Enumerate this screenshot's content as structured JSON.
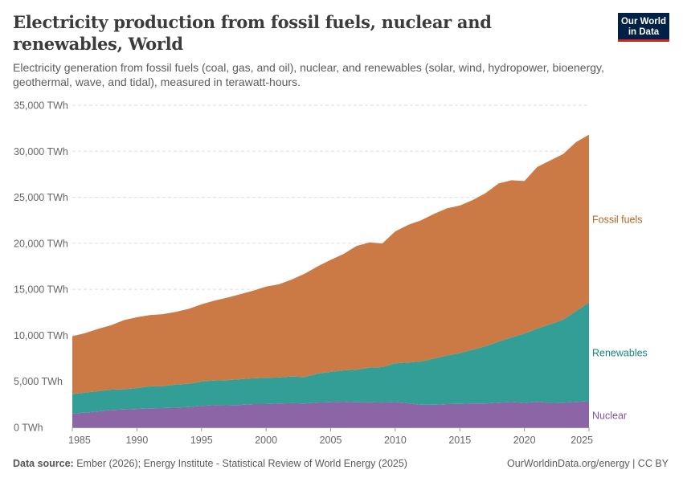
{
  "header": {
    "title": "Electricity production from fossil fuels, nuclear and renewables, World",
    "subtitle": "Electricity generation from fossil fuels (coal, gas, and oil), nuclear, and renewables (solar, wind, hydropower, bioenergy, geothermal, wave, and tidal), measured in terawatt-hours.",
    "logo_text": "Our World in Data"
  },
  "footer": {
    "source_label": "Data source:",
    "source_text": "Ember (2026); Energy Institute - Statistical Review of World Energy (2025)",
    "license": "OurWorldinData.org/energy | CC BY"
  },
  "chart_data": {
    "type": "area",
    "stacked": true,
    "title": "Electricity production from fossil fuels, nuclear and renewables, World",
    "ylabel": "",
    "xlabel": "",
    "unit": "TWh",
    "ylim": [
      0,
      35000
    ],
    "xlim": [
      1985,
      2025
    ],
    "grid": "horizontal dashed",
    "legend": "right (inline labels)",
    "x_ticks": [
      "1985",
      "1990",
      "1995",
      "2000",
      "2005",
      "2010",
      "2015",
      "2020",
      "2025"
    ],
    "y_ticks": [
      "0 TWh",
      "5,000 TWh",
      "10,000 TWh",
      "15,000 TWh",
      "20,000 TWh",
      "25,000 TWh",
      "30,000 TWh",
      "35,000 TWh"
    ],
    "x": [
      1985,
      1986,
      1987,
      1988,
      1989,
      1990,
      1991,
      1992,
      1993,
      1994,
      1995,
      1996,
      1997,
      1998,
      1999,
      2000,
      2001,
      2002,
      2003,
      2004,
      2005,
      2006,
      2007,
      2008,
      2009,
      2010,
      2011,
      2012,
      2013,
      2014,
      2015,
      2016,
      2017,
      2018,
      2019,
      2020,
      2021,
      2022,
      2023,
      2024,
      2025
    ],
    "series": [
      {
        "name": "Nuclear",
        "color": "#8c65a6",
        "label_color": "#7d55a0",
        "values": [
          1490,
          1600,
          1740,
          1890,
          1940,
          2000,
          2070,
          2090,
          2150,
          2200,
          2330,
          2410,
          2400,
          2430,
          2530,
          2530,
          2600,
          2630,
          2600,
          2700,
          2740,
          2790,
          2720,
          2730,
          2700,
          2750,
          2620,
          2450,
          2460,
          2530,
          2550,
          2600,
          2600,
          2680,
          2750,
          2660,
          2770,
          2650,
          2680,
          2770,
          2850
        ]
      },
      {
        "name": "Renewables",
        "color": "#339e96",
        "label_color": "#16877e",
        "values": [
          2120,
          2190,
          2190,
          2210,
          2190,
          2280,
          2390,
          2370,
          2510,
          2550,
          2650,
          2690,
          2730,
          2810,
          2800,
          2860,
          2820,
          2900,
          2870,
          3150,
          3290,
          3410,
          3540,
          3760,
          3850,
          4210,
          4430,
          4710,
          5020,
          5270,
          5520,
          5840,
          6220,
          6640,
          7030,
          7530,
          7980,
          8560,
          9020,
          9870,
          10720
        ]
      },
      {
        "name": "Fossil fuels",
        "color": "#cb7945",
        "label_color": "#b8621f",
        "values": [
          6290,
          6460,
          6770,
          7000,
          7520,
          7690,
          7740,
          7840,
          7890,
          8120,
          8390,
          8670,
          8970,
          9230,
          9520,
          9910,
          10130,
          10540,
          11230,
          11650,
          12170,
          12640,
          13440,
          13610,
          13430,
          14340,
          14950,
          15340,
          15720,
          16000,
          16030,
          16260,
          16630,
          17180,
          17070,
          16570,
          17550,
          17790,
          18000,
          18360,
          18230
        ]
      }
    ]
  }
}
